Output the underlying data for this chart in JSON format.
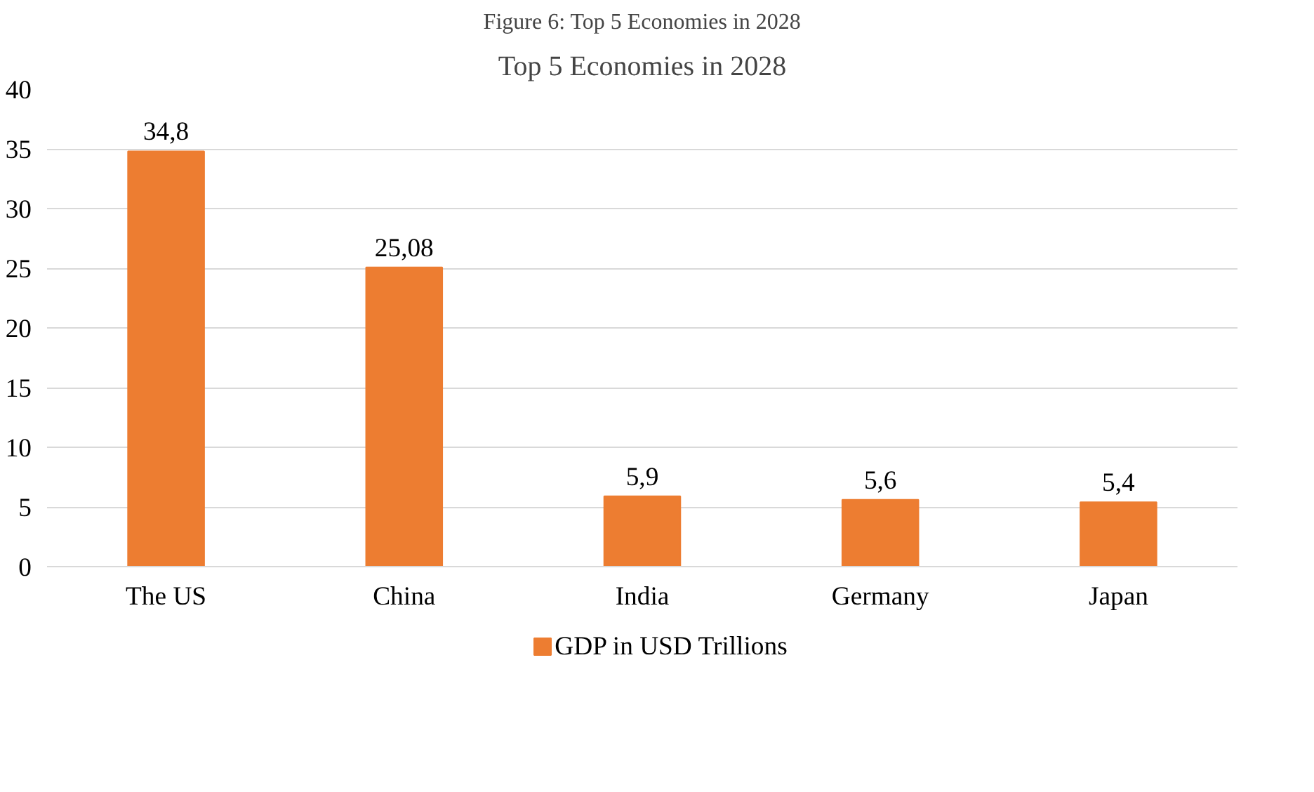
{
  "chart_data": {
    "type": "bar",
    "title": "Top 5 Economies in 2028",
    "annotations": [
      "Figure 6: Top 5 Economies in 2028"
    ],
    "categories": [
      "The US",
      "China",
      "India",
      "Germany",
      "Japan"
    ],
    "series": [
      {
        "name": "GDP in USD Trillions",
        "color": "#ed7d31",
        "values": [
          34.8,
          25.08,
          5.9,
          5.6,
          5.4
        ],
        "value_labels": [
          "34,8",
          "25,08",
          "5,9",
          "5,6",
          "5,4"
        ]
      }
    ],
    "ylim": [
      0,
      40
    ],
    "yticks": [
      0,
      5,
      10,
      15,
      20,
      25,
      30,
      35,
      40
    ],
    "grid": "y",
    "legend": "bottom"
  }
}
